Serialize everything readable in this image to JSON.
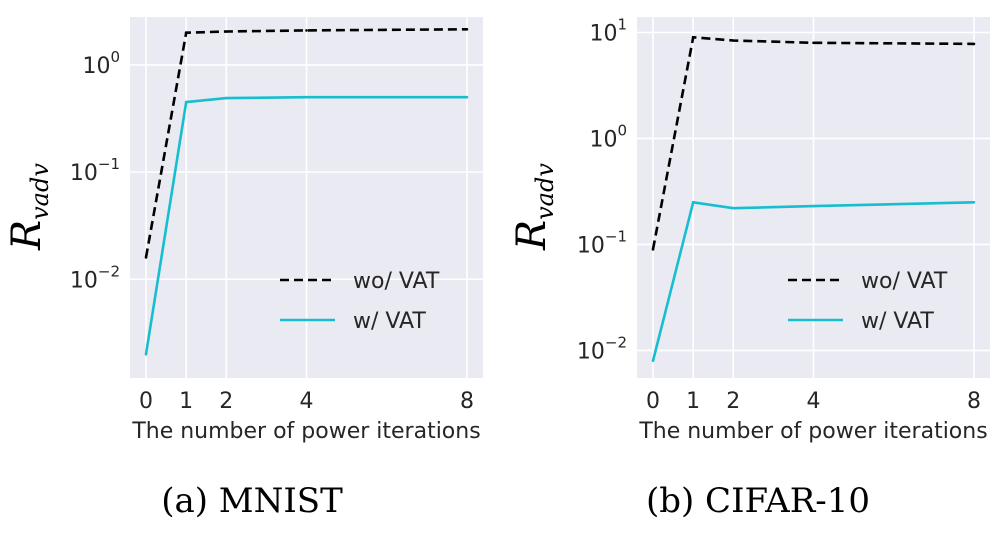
{
  "chart_data": [
    {
      "type": "line",
      "caption": "(a) MNIST",
      "xlabel": "The number of power iterations",
      "ylabel_symbol": "R",
      "ylabel_subscript": "vadv",
      "yscale": "log",
      "x_ticks": [
        "0",
        "1",
        "2",
        "4",
        "8"
      ],
      "y_ticks": [
        {
          "value": 1,
          "base": "10",
          "exp": "0"
        },
        {
          "value": 0.1,
          "base": "10",
          "exp": "−1"
        },
        {
          "value": 0.01,
          "base": "10",
          "exp": "−2"
        }
      ],
      "xlim": [
        -0.4,
        8.4
      ],
      "ylim": [
        0.0012,
        2.8
      ],
      "grid": true,
      "legend_position": "lower-right",
      "series": [
        {
          "name": "wo/ VAT",
          "color": "#000000",
          "style": "dashed",
          "x": [
            0,
            1,
            2,
            4,
            8
          ],
          "y": [
            0.016,
            2.0,
            2.05,
            2.1,
            2.15
          ]
        },
        {
          "name": "w/ VAT",
          "color": "#17becf",
          "style": "solid",
          "x": [
            0,
            1,
            2,
            4,
            8
          ],
          "y": [
            0.002,
            0.45,
            0.49,
            0.5,
            0.5
          ]
        }
      ]
    },
    {
      "type": "line",
      "caption": "(b) CIFAR-10",
      "xlabel": "The number of power iterations",
      "ylabel_symbol": "R",
      "ylabel_subscript": "vadv",
      "yscale": "log",
      "x_ticks": [
        "0",
        "1",
        "2",
        "4",
        "8"
      ],
      "y_ticks": [
        {
          "value": 10,
          "base": "10",
          "exp": "1"
        },
        {
          "value": 1,
          "base": "10",
          "exp": "0"
        },
        {
          "value": 0.1,
          "base": "10",
          "exp": "−1"
        },
        {
          "value": 0.01,
          "base": "10",
          "exp": "−2"
        }
      ],
      "xlim": [
        -0.4,
        8.4
      ],
      "ylim": [
        0.0055,
        14
      ],
      "grid": true,
      "legend_position": "lower-right",
      "series": [
        {
          "name": "wo/ VAT",
          "color": "#000000",
          "style": "dashed",
          "x": [
            0,
            1,
            2,
            4,
            8
          ],
          "y": [
            0.09,
            9.0,
            8.4,
            8.0,
            7.8
          ]
        },
        {
          "name": "w/ VAT",
          "color": "#17becf",
          "style": "solid",
          "x": [
            0,
            1,
            2,
            4,
            8
          ],
          "y": [
            0.008,
            0.25,
            0.22,
            0.23,
            0.25
          ]
        }
      ]
    }
  ]
}
